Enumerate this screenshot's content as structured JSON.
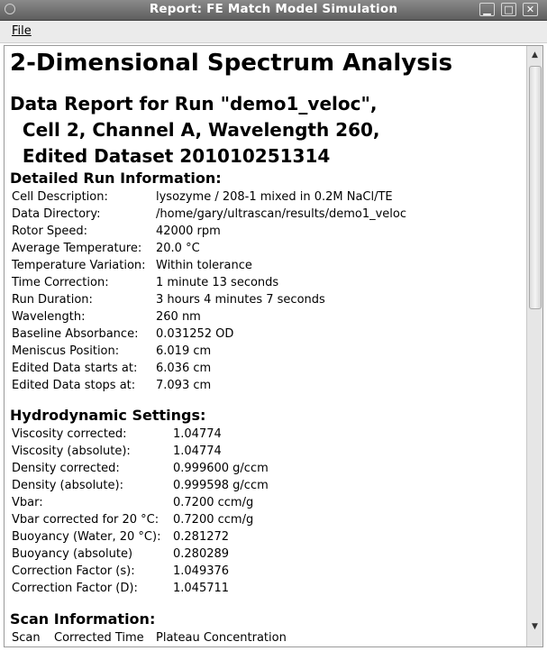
{
  "window": {
    "title": "Report:  FE Match Model Simulation",
    "buttons": {
      "minimize": "▁",
      "maximize": "□",
      "close": "✕"
    }
  },
  "menu": {
    "file_label": "File"
  },
  "report": {
    "title": "2-Dimensional Spectrum Analysis",
    "subtitle_lines": [
      "Data Report for Run \"demo1_veloc\",",
      "  Cell 2, Channel A, Wavelength 260,",
      "  Edited Dataset 201010251314"
    ],
    "run_info": {
      "heading": "Detailed Run Information:",
      "rows": [
        {
          "label": "Cell Description:",
          "value": "lysozyme / 208-1 mixed in 0.2M NaCl/TE"
        },
        {
          "label": "Data Directory:",
          "value": "/home/gary/ultrascan/results/demo1_veloc"
        },
        {
          "label": "Rotor Speed:",
          "value": "42000 rpm"
        },
        {
          "label": "Average Temperature:",
          "value": "20.0 °C"
        },
        {
          "label": "Temperature Variation:",
          "value": "Within tolerance"
        },
        {
          "label": "Time Correction:",
          "value": "1 minute 13 seconds"
        },
        {
          "label": "Run Duration:",
          "value": "3 hours 4 minutes 7 seconds"
        },
        {
          "label": "Wavelength:",
          "value": "260 nm"
        },
        {
          "label": "Baseline Absorbance:",
          "value": "0.031252 OD"
        },
        {
          "label": "Meniscus Position:",
          "value": "6.019 cm"
        },
        {
          "label": "Edited Data starts at:",
          "value": "6.036 cm"
        },
        {
          "label": "Edited Data stops at:",
          "value": "7.093 cm"
        }
      ]
    },
    "hydro": {
      "heading": "Hydrodynamic Settings:",
      "rows": [
        {
          "label": "Viscosity corrected:",
          "value": "1.04774"
        },
        {
          "label": "Viscosity (absolute):",
          "value": "1.04774"
        },
        {
          "label": "Density corrected:",
          "value": "0.999600 g/ccm"
        },
        {
          "label": "Density (absolute):",
          "value": "0.999598 g/ccm"
        },
        {
          "label": "Vbar:",
          "value": "0.7200 ccm/g"
        },
        {
          "label": "Vbar corrected for 20 °C:",
          "value": "0.7200 ccm/g"
        },
        {
          "label": "Buoyancy (Water, 20 °C):",
          "value": "0.281272"
        },
        {
          "label": "Buoyancy (absolute)",
          "value": "0.280289"
        },
        {
          "label": "Correction Factor (s):",
          "value": "1.049376"
        },
        {
          "label": "Correction Factor (D):",
          "value": "1.045711"
        }
      ]
    },
    "scan": {
      "heading": "Scan Information:",
      "columns": [
        "Scan",
        "Corrected Time",
        "Plateau Concentration"
      ]
    }
  }
}
